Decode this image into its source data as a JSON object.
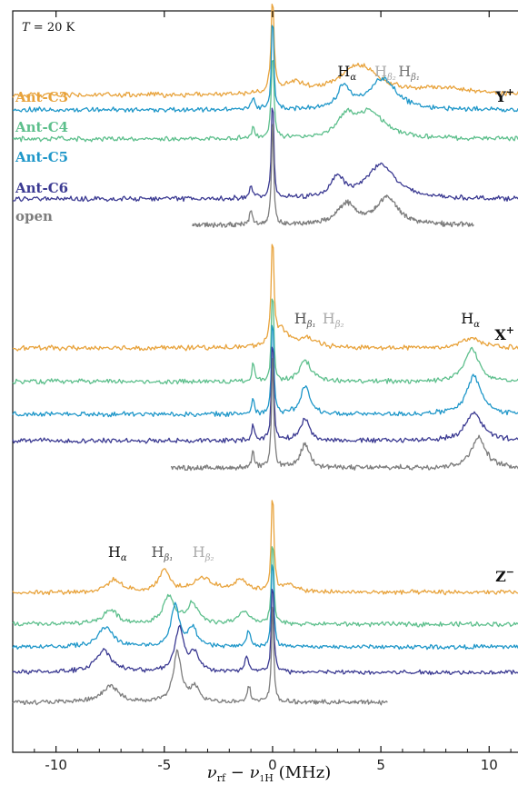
{
  "chart_data": {
    "type": "line",
    "annotation_temperature": "T = 20 K",
    "temperature_var": "T",
    "temperature_rest": " = 20 K",
    "xlabel": "ν_rf − ν_1H (MHz)",
    "xlabel_parts": {
      "nu": "ν",
      "rf": "rf",
      "minus": " − ",
      "nu2": "ν",
      "sub1": "1",
      "subH": "H",
      "unit": " (MHz)"
    },
    "xlim": [
      -12,
      11.5
    ],
    "xticks": [
      -10,
      -5,
      0,
      5,
      10
    ],
    "xtick_labels": [
      "-10",
      "-5",
      "0",
      "5",
      "10"
    ],
    "series": [
      {
        "name": "Ant-C3",
        "color": "#E8A33C"
      },
      {
        "name": "Ant-C4",
        "color": "#5DBF8C"
      },
      {
        "name": "Ant-C5",
        "color": "#1F97C9"
      },
      {
        "name": "Ant-C6",
        "color": "#3B3A92"
      },
      {
        "name": "open",
        "color": "#7D7D7D"
      }
    ],
    "panels": [
      {
        "label": "Y⁺",
        "label_main": "Y",
        "label_sup": "+",
        "peak_labels": [
          {
            "main": "H",
            "sub": "α",
            "x": 3.0,
            "color": "#111111"
          },
          {
            "main": "H",
            "sub": "β₂",
            "x": 4.7,
            "color": "#AAAAAA"
          },
          {
            "main": "H",
            "sub": "β₁",
            "x": 5.8,
            "color": "#777777"
          }
        ],
        "traces": [
          {
            "series": "Ant-C3",
            "x_range": [
              -12,
              11.5
            ],
            "peaks": [
              [
                0,
                0.9,
                0.08
              ],
              [
                4.0,
                0.28,
                1.1
              ],
              [
                1.0,
                0.1,
                0.6
              ],
              [
                8.0,
                0.06,
                1.5
              ]
            ]
          },
          {
            "series": "Ant-C4",
            "x_range": [
              -12,
              11.5
            ],
            "peaks": [
              [
                0,
                0.85,
                0.07
              ],
              [
                -0.9,
                0.1,
                0.08
              ],
              [
                3.4,
                0.18,
                0.5
              ],
              [
                4.5,
                0.25,
                0.8
              ]
            ]
          },
          {
            "series": "Ant-C5",
            "x_range": [
              -12,
              11.5
            ],
            "peaks": [
              [
                0,
                0.95,
                0.06
              ],
              [
                -0.9,
                0.12,
                0.08
              ],
              [
                3.3,
                0.22,
                0.35
              ],
              [
                5.1,
                0.3,
                0.7
              ]
            ]
          },
          {
            "series": "Ant-C6",
            "x_range": [
              -12,
              11.5
            ],
            "peaks": [
              [
                0,
                1.0,
                0.06
              ],
              [
                -1.0,
                0.14,
                0.08
              ],
              [
                3.0,
                0.2,
                0.35
              ],
              [
                5.0,
                0.33,
                0.8
              ]
            ]
          },
          {
            "series": "open",
            "x_range": [
              -3.7,
              9.3
            ],
            "peaks": [
              [
                0,
                1.0,
                0.06
              ],
              [
                -1.0,
                0.14,
                0.08
              ],
              [
                3.4,
                0.2,
                0.5
              ],
              [
                5.3,
                0.26,
                0.6
              ]
            ]
          }
        ]
      },
      {
        "label": "X⁺",
        "label_main": "X",
        "label_sup": "+",
        "peak_labels": [
          {
            "main": "H",
            "sub": "β₁",
            "x": 1.0,
            "color": "#555555"
          },
          {
            "main": "H",
            "sub": "β₂",
            "x": 2.3,
            "color": "#AAAAAA"
          },
          {
            "main": "H",
            "sub": "α",
            "x": 8.7,
            "color": "#111111"
          }
        ],
        "traces": [
          {
            "series": "Ant-C3",
            "x_range": [
              -12,
              11.5
            ],
            "peaks": [
              [
                0,
                1.0,
                0.07
              ],
              [
                0.4,
                0.15,
                0.4
              ],
              [
                1.6,
                0.08,
                0.5
              ],
              [
                9.2,
                0.1,
                0.5
              ]
            ]
          },
          {
            "series": "Ant-C4",
            "x_range": [
              -12,
              11.5
            ],
            "peaks": [
              [
                0,
                0.9,
                0.06
              ],
              [
                -0.9,
                0.16,
                0.07
              ],
              [
                1.5,
                0.2,
                0.3
              ],
              [
                9.2,
                0.3,
                0.4
              ]
            ]
          },
          {
            "series": "Ant-C5",
            "x_range": [
              -12,
              11.5
            ],
            "peaks": [
              [
                0,
                0.95,
                0.06
              ],
              [
                -0.9,
                0.16,
                0.07
              ],
              [
                1.5,
                0.26,
                0.25
              ],
              [
                9.3,
                0.35,
                0.4
              ]
            ]
          },
          {
            "series": "Ant-C6",
            "x_range": [
              -12,
              11.5
            ],
            "peaks": [
              [
                0,
                1.0,
                0.06
              ],
              [
                -0.9,
                0.16,
                0.07
              ],
              [
                1.5,
                0.2,
                0.25
              ],
              [
                9.3,
                0.26,
                0.45
              ]
            ]
          },
          {
            "series": "open",
            "x_range": [
              -4.7,
              11.5
            ],
            "peaks": [
              [
                0,
                1.0,
                0.06
              ],
              [
                -0.9,
                0.14,
                0.07
              ],
              [
                1.5,
                0.22,
                0.25
              ],
              [
                9.5,
                0.28,
                0.4
              ]
            ]
          }
        ]
      },
      {
        "label": "Z⁻",
        "label_main": "Z",
        "label_sup": "−",
        "peak_labels": [
          {
            "main": "H",
            "sub": "α",
            "x": -7.6,
            "color": "#111111"
          },
          {
            "main": "H",
            "sub": "β₁",
            "x": -5.6,
            "color": "#555555"
          },
          {
            "main": "H",
            "sub": "β₂",
            "x": -3.7,
            "color": "#AAAAAA"
          }
        ],
        "traces": [
          {
            "series": "Ant-C3",
            "x_range": [
              -12,
              11.5
            ],
            "peaks": [
              [
                0,
                1.0,
                0.07
              ],
              [
                -5.0,
                0.22,
                0.3
              ],
              [
                -7.3,
                0.12,
                0.4
              ],
              [
                -3.2,
                0.14,
                0.5
              ],
              [
                -1.5,
                0.12,
                0.4
              ],
              [
                0.8,
                0.08,
                0.3
              ]
            ]
          },
          {
            "series": "Ant-C4",
            "x_range": [
              -12,
              11.5
            ],
            "peaks": [
              [
                0,
                0.9,
                0.06
              ],
              [
                -4.8,
                0.28,
                0.3
              ],
              [
                -3.7,
                0.2,
                0.3
              ],
              [
                -7.5,
                0.14,
                0.4
              ],
              [
                -1.3,
                0.12,
                0.3
              ]
            ]
          },
          {
            "series": "Ant-C5",
            "x_range": [
              -12,
              11.5
            ],
            "peaks": [
              [
                0,
                0.95,
                0.06
              ],
              [
                -4.5,
                0.42,
                0.22
              ],
              [
                -3.7,
                0.18,
                0.25
              ],
              [
                -7.7,
                0.2,
                0.4
              ],
              [
                -1.1,
                0.16,
                0.1
              ]
            ]
          },
          {
            "series": "Ant-C6",
            "x_range": [
              -12,
              11.5
            ],
            "peaks": [
              [
                0,
                1.0,
                0.06
              ],
              [
                -4.3,
                0.44,
                0.25
              ],
              [
                -3.6,
                0.18,
                0.25
              ],
              [
                -7.8,
                0.22,
                0.45
              ],
              [
                -1.2,
                0.16,
                0.1
              ]
            ]
          },
          {
            "series": "open",
            "x_range": [
              -12,
              5.3
            ],
            "peaks": [
              [
                0,
                1.0,
                0.06
              ],
              [
                -4.4,
                0.5,
                0.22
              ],
              [
                -3.6,
                0.14,
                0.25
              ],
              [
                -7.5,
                0.16,
                0.45
              ],
              [
                -1.1,
                0.16,
                0.1
              ]
            ]
          }
        ]
      }
    ]
  }
}
